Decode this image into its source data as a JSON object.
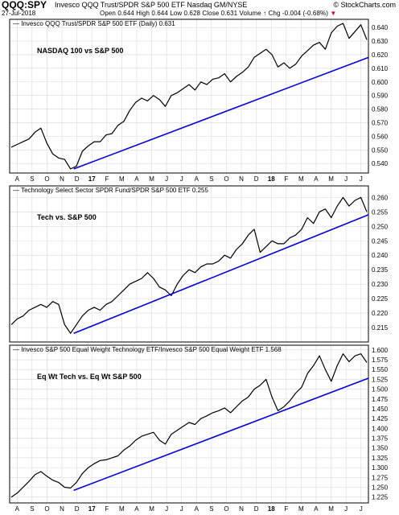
{
  "header": {
    "symbol": "QQQ:SPY",
    "description": "Invesco QQQ Trust/SPDR S&P 500 ETF Nasdaq GM/NYSE",
    "brand": "© StockCharts.com",
    "date": "27-Jul-2018",
    "open_label": "Open",
    "open": "0.644",
    "high_label": "High",
    "high": "0.644",
    "low_label": "Low",
    "low": "0.628",
    "close_label": "Close",
    "close": "0.631",
    "volume_label": "Volume",
    "volume": "↑",
    "chg_label": "Chg",
    "chg": "-0.004 (-0.68%)",
    "down_marker": "▼"
  },
  "colors": {
    "price": "#000000",
    "trend": "#0000dd",
    "grid": "#d8d8d8",
    "frame": "#000000",
    "down": "#c8102e"
  },
  "x_axis": {
    "ticks": [
      "A",
      "S",
      "O",
      "N",
      "D",
      "17",
      "F",
      "M",
      "A",
      "M",
      "J",
      "J",
      "A",
      "S",
      "O",
      "N",
      "D",
      "18",
      "F",
      "M",
      "A",
      "M",
      "J",
      "J"
    ],
    "bold_ticks": [
      "17",
      "18"
    ]
  },
  "chart_data": [
    {
      "type": "line",
      "legend": "Invesco QQQ Trust/SPDR S&P 500 ETF (Daily) 0.631",
      "annotation": "NASDAQ 100 vs S&P 500",
      "ylim": [
        0.533,
        0.646
      ],
      "yticks": [
        0.54,
        0.55,
        0.56,
        0.57,
        0.58,
        0.59,
        0.6,
        0.61,
        0.62,
        0.63,
        0.64
      ],
      "series": [
        {
          "values": [
            0.552,
            0.554,
            0.556,
            0.558,
            0.563,
            0.566,
            0.555,
            0.547,
            0.544,
            0.543,
            0.536,
            0.538,
            0.549,
            0.553,
            0.556,
            0.556,
            0.561,
            0.562,
            0.568,
            0.571,
            0.579,
            0.585,
            0.588,
            0.586,
            0.59,
            0.587,
            0.582,
            0.59,
            0.592,
            0.595,
            0.598,
            0.594,
            0.6,
            0.598,
            0.602,
            0.603,
            0.606,
            0.6,
            0.604,
            0.607,
            0.611,
            0.618,
            0.621,
            0.624,
            0.62,
            0.611,
            0.614,
            0.61,
            0.613,
            0.619,
            0.623,
            0.627,
            0.629,
            0.624,
            0.636,
            0.641,
            0.643,
            0.632,
            0.637,
            0.642,
            0.631
          ]
        },
        {
          "trendline": [
            0.536,
            0.618
          ]
        }
      ]
    },
    {
      "type": "line",
      "legend": "Technology Select Sector SPDR Fund/SPDR S&P 500 ETF 0.255",
      "annotation": "Tech vs. S&P 500",
      "ylim": [
        0.21,
        0.264
      ],
      "yticks": [
        0.215,
        0.22,
        0.225,
        0.23,
        0.235,
        0.24,
        0.245,
        0.25,
        0.255,
        0.26
      ],
      "series": [
        {
          "values": [
            0.216,
            0.218,
            0.219,
            0.221,
            0.222,
            0.223,
            0.222,
            0.224,
            0.223,
            0.216,
            0.213,
            0.216,
            0.219,
            0.221,
            0.222,
            0.221,
            0.223,
            0.224,
            0.226,
            0.228,
            0.23,
            0.231,
            0.232,
            0.234,
            0.232,
            0.229,
            0.228,
            0.226,
            0.23,
            0.233,
            0.235,
            0.234,
            0.236,
            0.237,
            0.237,
            0.238,
            0.24,
            0.239,
            0.242,
            0.244,
            0.247,
            0.249,
            0.241,
            0.243,
            0.245,
            0.244,
            0.244,
            0.246,
            0.247,
            0.249,
            0.253,
            0.251,
            0.255,
            0.256,
            0.253,
            0.257,
            0.26,
            0.257,
            0.259,
            0.26,
            0.255
          ]
        },
        {
          "trendline": [
            0.213,
            0.254
          ]
        }
      ]
    },
    {
      "type": "line",
      "legend": "Invesco S&P 500 Equal Weight Technology ETF/Invesco S&P 500 Equal Weight ETF 1.568",
      "annotation": "Eq Wt Tech vs. Eq Wt S&P 500",
      "ylim": [
        1.21,
        1.612
      ],
      "yticks": [
        1.225,
        1.25,
        1.275,
        1.3,
        1.325,
        1.35,
        1.375,
        1.4,
        1.425,
        1.45,
        1.475,
        1.5,
        1.525,
        1.55,
        1.575,
        1.6
      ],
      "series": [
        {
          "values": [
            1.225,
            1.235,
            1.25,
            1.265,
            1.282,
            1.29,
            1.278,
            1.268,
            1.262,
            1.25,
            1.248,
            1.262,
            1.285,
            1.3,
            1.31,
            1.318,
            1.32,
            1.325,
            1.33,
            1.345,
            1.355,
            1.37,
            1.38,
            1.385,
            1.39,
            1.37,
            1.36,
            1.385,
            1.395,
            1.405,
            1.415,
            1.41,
            1.425,
            1.432,
            1.44,
            1.445,
            1.452,
            1.44,
            1.455,
            1.47,
            1.48,
            1.5,
            1.51,
            1.525,
            1.48,
            1.445,
            1.455,
            1.47,
            1.49,
            1.505,
            1.54,
            1.56,
            1.585,
            1.55,
            1.52,
            1.56,
            1.59,
            1.57,
            1.585,
            1.59,
            1.568
          ]
        },
        {
          "trendline": [
            1.242,
            1.528
          ]
        }
      ]
    }
  ]
}
